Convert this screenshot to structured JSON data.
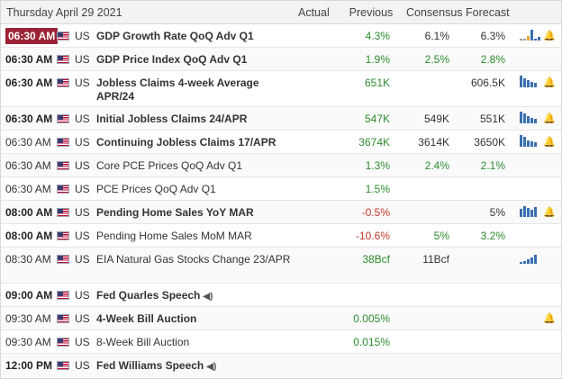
{
  "header": {
    "date": "Thursday April 29 2021",
    "actual": "Actual",
    "previous": "Previous",
    "consensus": "Consensus",
    "forecast": "Forecast"
  },
  "colors": {
    "highlight_time": "#9b2335",
    "positive": "#2e8b2e",
    "negative": "#c0392b",
    "chart_bar": "#3a6fb0"
  },
  "rows": [
    {
      "time": "06:30 AM",
      "country": "US",
      "event": "GDP Growth Rate QoQ Adv Q1",
      "actual": "",
      "previous": "4.3%",
      "consensus": "6.1%",
      "forecast": "6.3%"
    },
    {
      "time": "06:30 AM",
      "country": "US",
      "event": "GDP Price Index QoQ Adv Q1",
      "actual": "",
      "previous": "1.9%",
      "consensus": "2.5%",
      "forecast": "2.8%"
    },
    {
      "time": "06:30 AM",
      "country": "US",
      "event": "Jobless Claims 4-week Average APR/24",
      "actual": "",
      "previous": "651K",
      "consensus": "",
      "forecast": "606.5K"
    },
    {
      "time": "06:30 AM",
      "country": "US",
      "event": "Initial Jobless Claims 24/APR",
      "actual": "",
      "previous": "547K",
      "consensus": "549K",
      "forecast": "551K"
    },
    {
      "time": "06:30 AM",
      "country": "US",
      "event": "Continuing Jobless Claims 17/APR",
      "actual": "",
      "previous": "3674K",
      "consensus": "3614K",
      "forecast": "3650K"
    },
    {
      "time": "06:30 AM",
      "country": "US",
      "event": "Core PCE Prices QoQ Adv Q1",
      "actual": "",
      "previous": "1.3%",
      "consensus": "2.4%",
      "forecast": "2.1%"
    },
    {
      "time": "06:30 AM",
      "country": "US",
      "event": "PCE Prices QoQ Adv Q1",
      "actual": "",
      "previous": "1.5%",
      "consensus": "",
      "forecast": ""
    },
    {
      "time": "08:00 AM",
      "country": "US",
      "event": "Pending Home Sales YoY MAR",
      "actual": "",
      "previous": "-0.5%",
      "consensus": "",
      "forecast": "5%"
    },
    {
      "time": "08:00 AM",
      "country": "US",
      "event": "Pending Home Sales MoM MAR",
      "actual": "",
      "previous": "-10.6%",
      "consensus": "5%",
      "forecast": "3.2%"
    },
    {
      "time": "08:30 AM",
      "country": "US",
      "event": "EIA Natural Gas Stocks Change 23/APR",
      "actual": "",
      "previous": "38Bcf",
      "consensus": "11Bcf",
      "forecast": ""
    },
    {
      "time": "09:00 AM",
      "country": "US",
      "event": "Fed Quarles Speech",
      "actual": "",
      "previous": "",
      "consensus": "",
      "forecast": ""
    },
    {
      "time": "09:30 AM",
      "country": "US",
      "event": "4-Week Bill Auction",
      "actual": "",
      "previous": "0.005%",
      "consensus": "",
      "forecast": ""
    },
    {
      "time": "09:30 AM",
      "country": "US",
      "event": "8-Week Bill Auction",
      "actual": "",
      "previous": "0.015%",
      "consensus": "",
      "forecast": ""
    },
    {
      "time": "12:00 PM",
      "country": "US",
      "event": "Fed Williams Speech",
      "actual": "",
      "previous": "",
      "consensus": "",
      "forecast": ""
    }
  ]
}
